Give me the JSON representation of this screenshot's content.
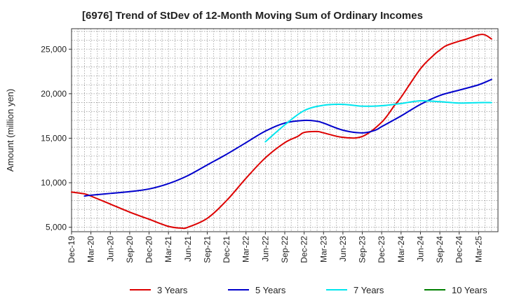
{
  "chart_data": {
    "type": "line",
    "title": "[6976]  Trend of StDev of 12-Month Moving Sum of Ordinary Incomes",
    "xlabel": "",
    "ylabel": "Amount (million yen)",
    "ylim": [
      4500,
      27300
    ],
    "yticks": [
      5000,
      10000,
      15000,
      20000,
      25000
    ],
    "ytick_labels": [
      "5,000",
      "10,000",
      "15,000",
      "20,000",
      "25,000"
    ],
    "xlim": [
      0,
      66
    ],
    "xtick_labels": [
      "Dec-19",
      "Mar-20",
      "Jun-20",
      "Sep-20",
      "Dec-20",
      "Mar-21",
      "Jun-21",
      "Sep-21",
      "Dec-21",
      "Mar-22",
      "Jun-22",
      "Sep-22",
      "Dec-22",
      "Mar-23",
      "Jun-23",
      "Sep-23",
      "Dec-23",
      "Mar-24",
      "Jun-24",
      "Sep-24",
      "Dec-24",
      "Mar-25"
    ],
    "series": [
      {
        "name": "3 Years",
        "color": "#dd0000",
        "x": [
          0,
          2,
          3,
          6,
          9,
          12,
          15,
          17,
          18,
          21,
          24,
          27,
          30,
          33,
          35,
          36,
          38,
          39,
          42,
          45,
          48,
          50,
          51,
          54,
          56,
          57,
          58,
          60,
          61,
          63,
          64,
          65
        ],
        "values": [
          8950,
          8750,
          8500,
          7600,
          6700,
          5900,
          5100,
          4900,
          5000,
          6000,
          8000,
          10500,
          12800,
          14500,
          15200,
          15650,
          15750,
          15600,
          15100,
          15200,
          16800,
          18700,
          19600,
          22800,
          24300,
          24900,
          25400,
          25900,
          26100,
          26600,
          26600,
          26150
        ]
      },
      {
        "name": "5 Years",
        "color": "#0000cc",
        "x": [
          2,
          3,
          6,
          9,
          12,
          15,
          18,
          21,
          24,
          27,
          30,
          33,
          36,
          38,
          39,
          42,
          45,
          47,
          48,
          51,
          54,
          57,
          60,
          63,
          65
        ],
        "values": [
          8500,
          8600,
          8800,
          9000,
          9300,
          9900,
          10800,
          12000,
          13200,
          14500,
          15800,
          16700,
          17000,
          16900,
          16700,
          15900,
          15600,
          15900,
          16300,
          17500,
          18800,
          19800,
          20400,
          21000,
          21600
        ]
      },
      {
        "name": "7 Years",
        "color": "#00e5ee",
        "x": [
          30,
          33,
          36,
          39,
          42,
          45,
          48,
          51,
          54,
          57,
          60,
          63,
          65
        ],
        "values": [
          14600,
          16500,
          18100,
          18700,
          18800,
          18600,
          18650,
          18900,
          19200,
          19100,
          18950,
          19000,
          19000
        ]
      },
      {
        "name": "10 Years",
        "color": "#008000",
        "x": [],
        "values": []
      }
    ],
    "legend_position": "bottom",
    "grid": true
  }
}
